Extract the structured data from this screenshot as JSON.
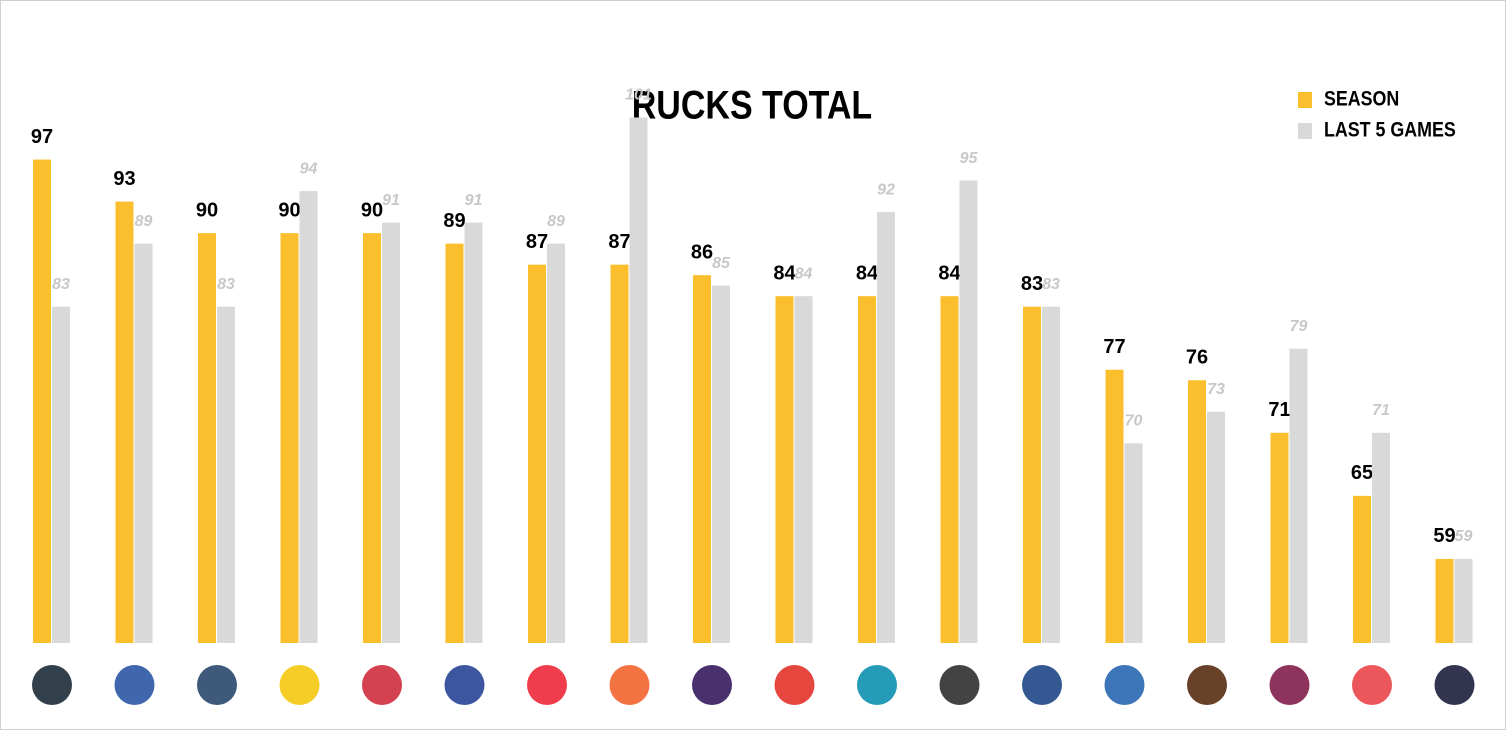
{
  "chart_data": {
    "type": "bar",
    "title": "RUCKS TOTAL",
    "categories": [
      null,
      null,
      null,
      null,
      null,
      null,
      null,
      null,
      null,
      null,
      null,
      null,
      null,
      null,
      null,
      null,
      null,
      null
    ],
    "series": [
      {
        "name": "SEASON",
        "color": "#fbbf2e",
        "values": [
          97,
          93,
          90,
          90,
          90,
          89,
          87,
          87,
          86,
          84,
          84,
          84,
          83,
          77,
          76,
          71,
          65,
          59
        ]
      },
      {
        "name": "LAST 5 GAMES",
        "color": "#d9d9d9",
        "values": [
          83,
          89,
          83,
          94,
          91,
          91,
          89,
          101,
          85,
          84,
          92,
          95,
          83,
          70,
          73,
          79,
          71,
          59
        ]
      }
    ],
    "ylim": [
      51,
      102
    ],
    "legend": "top-right",
    "grid": false
  }
}
